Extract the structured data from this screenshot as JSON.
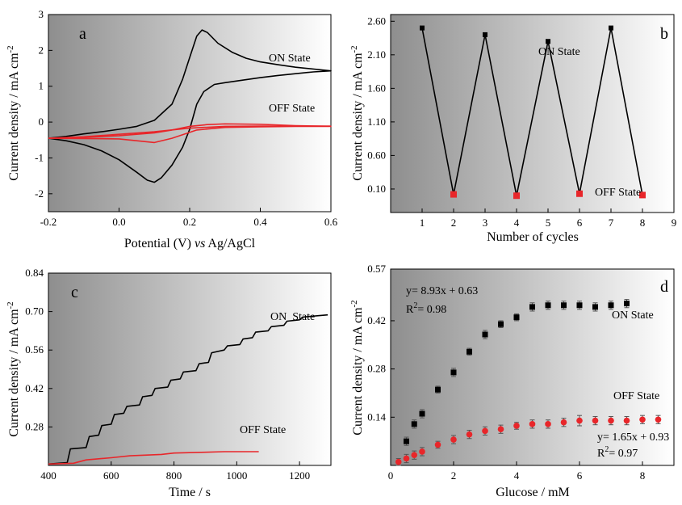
{
  "colors": {
    "on": "#000000",
    "off": "#e8262a",
    "gradient_dark": "#8e8e8e",
    "gradient_light": "#ffffff"
  },
  "chart_data": [
    {
      "id": "a",
      "type": "line",
      "panel_label": "a",
      "xlabel": "Potential (V) vs Ag/AgCl",
      "xlabel_parts": {
        "pre": "Potential (V) ",
        "italic": "vs",
        "post": " Ag/AgCl"
      },
      "ylabel": "Current density / mA cm-2",
      "xlim": [
        -0.2,
        0.6
      ],
      "ylim": [
        -2.5,
        3
      ],
      "xticks": [
        -0.2,
        0.0,
        0.2,
        0.4,
        0.6
      ],
      "xtick_labels": [
        "-0.2",
        "0.0",
        "0.2",
        "0.4",
        "0.6"
      ],
      "yticks": [
        -2,
        -1,
        0,
        1,
        2,
        3
      ],
      "ytick_labels": [
        "-2",
        "-1",
        "0",
        "1",
        "2",
        "3"
      ],
      "annotations": [
        "ON State",
        "OFF State"
      ],
      "series": [
        {
          "key": "on",
          "points": [
            [
              -0.2,
              -0.45
            ],
            [
              -0.15,
              -0.4
            ],
            [
              -0.1,
              -0.33
            ],
            [
              -0.05,
              -0.27
            ],
            [
              0.0,
              -0.2
            ],
            [
              0.05,
              -0.12
            ],
            [
              0.1,
              0.05
            ],
            [
              0.15,
              0.5
            ],
            [
              0.18,
              1.2
            ],
            [
              0.2,
              1.8
            ],
            [
              0.22,
              2.4
            ],
            [
              0.235,
              2.57
            ],
            [
              0.25,
              2.5
            ],
            [
              0.28,
              2.2
            ],
            [
              0.32,
              1.95
            ],
            [
              0.36,
              1.78
            ],
            [
              0.4,
              1.68
            ],
            [
              0.45,
              1.6
            ],
            [
              0.5,
              1.53
            ],
            [
              0.55,
              1.48
            ],
            [
              0.6,
              1.43
            ],
            [
              0.55,
              1.4
            ],
            [
              0.5,
              1.35
            ],
            [
              0.45,
              1.3
            ],
            [
              0.4,
              1.24
            ],
            [
              0.35,
              1.17
            ],
            [
              0.3,
              1.1
            ],
            [
              0.27,
              1.05
            ],
            [
              0.24,
              0.85
            ],
            [
              0.22,
              0.5
            ],
            [
              0.2,
              -0.2
            ],
            [
              0.18,
              -0.7
            ],
            [
              0.15,
              -1.2
            ],
            [
              0.12,
              -1.55
            ],
            [
              0.1,
              -1.68
            ],
            [
              0.08,
              -1.62
            ],
            [
              0.05,
              -1.4
            ],
            [
              0.0,
              -1.05
            ],
            [
              -0.05,
              -0.8
            ],
            [
              -0.1,
              -0.63
            ],
            [
              -0.15,
              -0.52
            ],
            [
              -0.2,
              -0.45
            ]
          ]
        },
        {
          "key": "off",
          "points": [
            [
              -0.2,
              -0.45
            ],
            [
              -0.1,
              -0.43
            ],
            [
              0.0,
              -0.38
            ],
            [
              0.1,
              -0.3
            ],
            [
              0.15,
              -0.22
            ],
            [
              0.2,
              -0.12
            ],
            [
              0.25,
              -0.07
            ],
            [
              0.3,
              -0.05
            ],
            [
              0.4,
              -0.06
            ],
            [
              0.5,
              -0.1
            ],
            [
              0.6,
              -0.12
            ],
            [
              0.5,
              -0.12
            ],
            [
              0.4,
              -0.13
            ],
            [
              0.3,
              -0.15
            ],
            [
              0.22,
              -0.22
            ],
            [
              0.15,
              -0.45
            ],
            [
              0.1,
              -0.57
            ],
            [
              0.05,
              -0.52
            ],
            [
              0.0,
              -0.47
            ],
            [
              -0.1,
              -0.46
            ],
            [
              -0.2,
              -0.45
            ]
          ]
        },
        {
          "key": "off",
          "points": [
            [
              -0.2,
              -0.45
            ],
            [
              -0.1,
              -0.41
            ],
            [
              0.0,
              -0.34
            ],
            [
              0.1,
              -0.27
            ],
            [
              0.2,
              -0.17
            ],
            [
              0.3,
              -0.12
            ],
            [
              0.4,
              -0.11
            ],
            [
              0.5,
              -0.11
            ],
            [
              0.6,
              -0.11
            ]
          ]
        }
      ]
    },
    {
      "id": "b",
      "type": "line",
      "panel_label": "b",
      "xlabel": "Number of cycles",
      "ylabel": "Current density / mA cm-2",
      "xlim": [
        0,
        9
      ],
      "ylim": [
        -0.25,
        2.7
      ],
      "xticks": [
        1,
        2,
        3,
        4,
        5,
        6,
        7,
        8,
        9
      ],
      "xtick_labels": [
        "1",
        "2",
        "3",
        "4",
        "5",
        "6",
        "7",
        "8",
        "9"
      ],
      "yticks": [
        0.1,
        0.6,
        1.1,
        1.6,
        2.1,
        2.6
      ],
      "ytick_labels": [
        "0.10",
        "0.60",
        "1.10",
        "1.60",
        "2.10",
        "2.60"
      ],
      "annotations": [
        "ON State",
        "OFF State"
      ],
      "x": [
        1,
        2,
        3,
        4,
        5,
        6,
        7,
        8
      ],
      "values": [
        2.5,
        0.02,
        2.4,
        0.0,
        2.3,
        0.03,
        2.5,
        0.01
      ],
      "marker_series": [
        "on",
        "off",
        "on",
        "off",
        "on",
        "off",
        "on",
        "off"
      ]
    },
    {
      "id": "c",
      "type": "line",
      "panel_label": "c",
      "xlabel": "Time / s",
      "ylabel": "Current density / mA cm-2",
      "xlim": [
        400,
        1300
      ],
      "ylim": [
        0.14,
        0.84
      ],
      "xticks": [
        400,
        600,
        800,
        1000,
        1200
      ],
      "xtick_labels": [
        "400",
        "600",
        "800",
        "1000",
        "1200"
      ],
      "yticks": [
        0.28,
        0.42,
        0.56,
        0.7,
        0.84
      ],
      "ytick_labels": [
        "0.28",
        "0.42",
        "0.56",
        "0.70",
        "0.84"
      ],
      "annotations": [
        "ON  State",
        "OFF State"
      ],
      "series": [
        {
          "key": "on",
          "points": [
            [
              400,
              0.145
            ],
            [
              460,
              0.15
            ],
            [
              470,
              0.2
            ],
            [
              520,
              0.205
            ],
            [
              530,
              0.245
            ],
            [
              560,
              0.25
            ],
            [
              570,
              0.285
            ],
            [
              600,
              0.29
            ],
            [
              610,
              0.325
            ],
            [
              640,
              0.33
            ],
            [
              650,
              0.355
            ],
            [
              690,
              0.36
            ],
            [
              700,
              0.39
            ],
            [
              730,
              0.395
            ],
            [
              740,
              0.42
            ],
            [
              780,
              0.425
            ],
            [
              790,
              0.45
            ],
            [
              820,
              0.455
            ],
            [
              830,
              0.48
            ],
            [
              870,
              0.485
            ],
            [
              880,
              0.51
            ],
            [
              910,
              0.515
            ],
            [
              920,
              0.55
            ],
            [
              960,
              0.56
            ],
            [
              970,
              0.575
            ],
            [
              1010,
              0.58
            ],
            [
              1020,
              0.6
            ],
            [
              1050,
              0.605
            ],
            [
              1060,
              0.625
            ],
            [
              1100,
              0.63
            ],
            [
              1110,
              0.645
            ],
            [
              1150,
              0.65
            ],
            [
              1160,
              0.665
            ],
            [
              1200,
              0.67
            ],
            [
              1210,
              0.68
            ],
            [
              1260,
              0.685
            ],
            [
              1290,
              0.688
            ]
          ]
        },
        {
          "key": "off",
          "points": [
            [
              400,
              0.145
            ],
            [
              480,
              0.148
            ],
            [
              520,
              0.16
            ],
            [
              600,
              0.168
            ],
            [
              660,
              0.175
            ],
            [
              760,
              0.18
            ],
            [
              800,
              0.185
            ],
            [
              900,
              0.188
            ],
            [
              960,
              0.19
            ],
            [
              1070,
              0.19
            ]
          ]
        }
      ]
    },
    {
      "id": "d",
      "type": "scatter",
      "panel_label": "d",
      "xlabel": "Glucose / mM",
      "ylabel": "Current density / mA cm-2",
      "xlim": [
        0,
        9
      ],
      "ylim": [
        0,
        0.57
      ],
      "xticks": [
        0,
        2,
        4,
        6,
        8
      ],
      "xtick_labels": [
        "0",
        "2",
        "4",
        "6",
        "8"
      ],
      "yticks": [
        0.14,
        0.28,
        0.42,
        0.57
      ],
      "ytick_labels": [
        "0.14",
        "0.28",
        "0.42",
        "0.57"
      ],
      "annotations": [
        "y= 8.93x + 0.63",
        "R2= 0.98",
        "ON State",
        "OFF State",
        "y= 1.65x + 0.93",
        "R2= 0.97"
      ],
      "series": [
        {
          "key": "on",
          "x": [
            0.5,
            0.75,
            1.0,
            1.5,
            2.0,
            2.5,
            3.0,
            3.5,
            4.0,
            4.5,
            5.0,
            5.5,
            6.0,
            6.5,
            7.0,
            7.5
          ],
          "y": [
            0.07,
            0.12,
            0.15,
            0.22,
            0.27,
            0.33,
            0.38,
            0.41,
            0.43,
            0.46,
            0.465,
            0.465,
            0.465,
            0.46,
            0.465,
            0.47
          ],
          "err": [
            0.012,
            0.012,
            0.012,
            0.01,
            0.012,
            0.01,
            0.012,
            0.01,
            0.01,
            0.012,
            0.012,
            0.012,
            0.012,
            0.012,
            0.012,
            0.012
          ]
        },
        {
          "key": "off",
          "x": [
            0.25,
            0.5,
            0.75,
            1.0,
            1.5,
            2.0,
            2.5,
            3.0,
            3.5,
            4.0,
            4.5,
            5.0,
            5.5,
            6.0,
            6.5,
            7.0,
            7.5,
            8.0,
            8.5
          ],
          "y": [
            0.01,
            0.02,
            0.03,
            0.04,
            0.06,
            0.075,
            0.09,
            0.1,
            0.105,
            0.115,
            0.12,
            0.12,
            0.125,
            0.13,
            0.13,
            0.13,
            0.13,
            0.133,
            0.133
          ],
          "err": [
            0.01,
            0.012,
            0.012,
            0.012,
            0.01,
            0.012,
            0.012,
            0.012,
            0.012,
            0.01,
            0.012,
            0.012,
            0.012,
            0.015,
            0.012,
            0.012,
            0.012,
            0.012,
            0.012
          ]
        }
      ]
    }
  ]
}
